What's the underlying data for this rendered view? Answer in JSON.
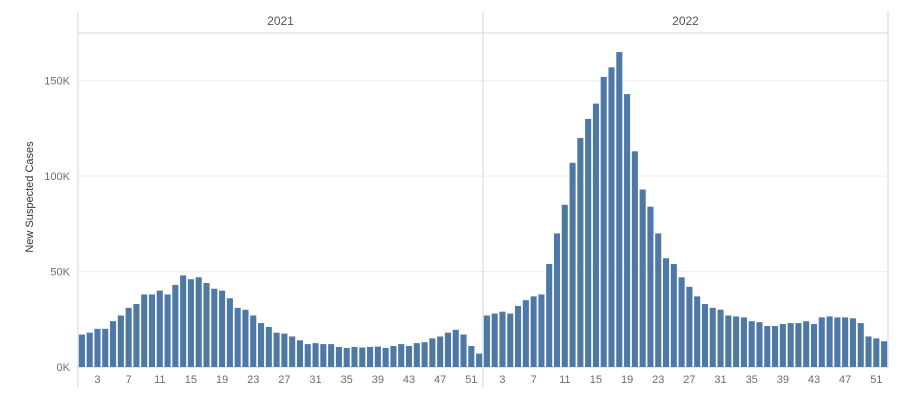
{
  "chart_data": {
    "type": "bar",
    "ylabel": "New Suspected Cases",
    "ylim": [
      0,
      175000
    ],
    "yticks": [
      0,
      50000,
      100000,
      150000
    ],
    "ytick_labels": [
      "0K",
      "50K",
      "100K",
      "150K"
    ],
    "x": [
      1,
      2,
      3,
      4,
      5,
      6,
      7,
      8,
      9,
      10,
      11,
      12,
      13,
      14,
      15,
      16,
      17,
      18,
      19,
      20,
      21,
      22,
      23,
      24,
      25,
      26,
      27,
      28,
      29,
      30,
      31,
      32,
      33,
      34,
      35,
      36,
      37,
      38,
      39,
      40,
      41,
      42,
      43,
      44,
      45,
      46,
      47,
      48,
      49,
      50,
      51,
      52
    ],
    "xtick_labels": [
      "3",
      "7",
      "11",
      "15",
      "19",
      "23",
      "27",
      "31",
      "35",
      "39",
      "43",
      "47",
      "51"
    ],
    "xtick_values": [
      3,
      7,
      11,
      15,
      19,
      23,
      27,
      31,
      35,
      39,
      43,
      47,
      51
    ],
    "bar_color": "#4e79a7",
    "grid": true,
    "panels": [
      {
        "name": "2021",
        "values": [
          17000,
          18000,
          20000,
          20000,
          24000,
          27000,
          31000,
          33000,
          38000,
          38000,
          40000,
          38000,
          43000,
          48000,
          46000,
          47000,
          44000,
          41000,
          40000,
          36000,
          31000,
          30000,
          27000,
          23000,
          21000,
          18000,
          17500,
          16000,
          14000,
          12000,
          12500,
          12000,
          12000,
          10500,
          10000,
          10500,
          10200,
          10500,
          10700,
          10000,
          11000,
          12000,
          11000,
          12500,
          13000,
          15000,
          16000,
          18000,
          19500,
          17000,
          11000,
          7000
        ]
      },
      {
        "name": "2022",
        "values": [
          27000,
          28000,
          29000,
          28000,
          32000,
          35000,
          37000,
          38000,
          54000,
          70000,
          85000,
          107000,
          120000,
          130000,
          138000,
          152000,
          157000,
          165000,
          143000,
          113000,
          93000,
          84000,
          70000,
          57000,
          54000,
          47000,
          42000,
          37000,
          33000,
          31000,
          30000,
          27000,
          26500,
          26000,
          24000,
          23500,
          21500,
          21500,
          22500,
          23000,
          23000,
          24000,
          22500,
          26000,
          26500,
          26000,
          26000,
          25500,
          23000,
          16000,
          15000,
          13500
        ]
      }
    ]
  }
}
